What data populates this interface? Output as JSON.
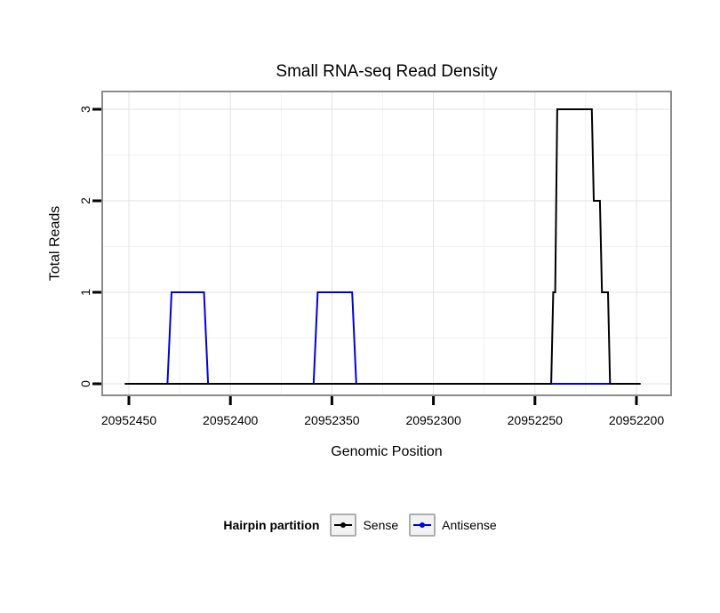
{
  "chart_data": {
    "type": "line",
    "step": true,
    "title": "Small RNA-seq Read Density",
    "xlabel": "Genomic Position",
    "ylabel": "Total Reads",
    "legend_title": "Hairpin partition",
    "legend_position": "bottom",
    "grid": true,
    "x_axis": {
      "reversed": true,
      "ticks": [
        20952450,
        20952400,
        20952350,
        20952300,
        20952250,
        20952200
      ],
      "tick_labels": [
        "20952450",
        "20952400",
        "20952350",
        "20952300",
        "20952250",
        "20952200"
      ]
    },
    "y_axis": {
      "ticks": [
        0,
        1,
        2,
        3
      ],
      "tick_labels": [
        "0",
        "1",
        "2",
        "3"
      ],
      "range": [
        0,
        3
      ]
    },
    "colors": {
      "sense": "#000000",
      "antisense": "#0000dd",
      "grid_major": "#e3e3e3",
      "grid_minor": "#f1f1f1",
      "panel_border": "#8c8c8c",
      "axis_tick": "#000000"
    },
    "series": [
      {
        "name": "Sense",
        "color": "#000000",
        "points": [
          [
            20952452,
            0
          ],
          [
            20952242,
            0
          ],
          [
            20952241,
            1
          ],
          [
            20952240,
            1
          ],
          [
            20952239,
            3
          ],
          [
            20952222,
            3
          ],
          [
            20952221,
            2
          ],
          [
            20952218,
            2
          ],
          [
            20952217,
            1
          ],
          [
            20952214,
            1
          ],
          [
            20952213,
            0
          ],
          [
            20952198,
            0
          ]
        ]
      },
      {
        "name": "Antisense",
        "color": "#0000dd",
        "points": [
          [
            20952452,
            0
          ],
          [
            20952431,
            0
          ],
          [
            20952429,
            1
          ],
          [
            20952413,
            1
          ],
          [
            20952411,
            0
          ],
          [
            20952359,
            0
          ],
          [
            20952357,
            1
          ],
          [
            20952340,
            1
          ],
          [
            20952338,
            0
          ],
          [
            20952198,
            0
          ]
        ]
      }
    ]
  }
}
